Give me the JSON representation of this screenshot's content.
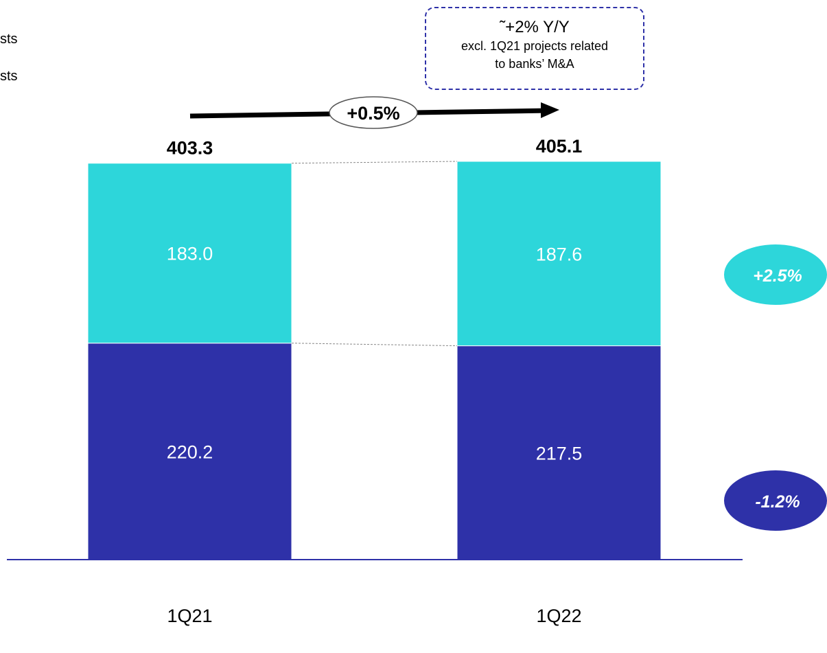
{
  "legend_fragments": [
    "sts",
    "sts"
  ],
  "callout": {
    "line1": "˜+2% Y/Y",
    "line2": "excl. 1Q21 projects related",
    "line3": "to banks’ M&A"
  },
  "growth_label": "+0.5%",
  "chart_data": {
    "type": "bar",
    "stacked": true,
    "categories": [
      "1Q21",
      "1Q22"
    ],
    "series": [
      {
        "values": [
          220.2,
          217.5
        ],
        "color": "#2e31a8",
        "change_label": "-1.2%"
      },
      {
        "values": [
          183.0,
          187.6
        ],
        "color": "#2dd6da",
        "change_label": "+2.5%"
      }
    ],
    "totals": [
      "403.3",
      "405.1"
    ],
    "segment_labels": [
      [
        "220.2",
        "217.5"
      ],
      [
        "183.0",
        "187.6"
      ]
    ],
    "ylim": [
      0,
      405.1
    ],
    "grid": false,
    "baseline_color": "#2e31a8"
  }
}
